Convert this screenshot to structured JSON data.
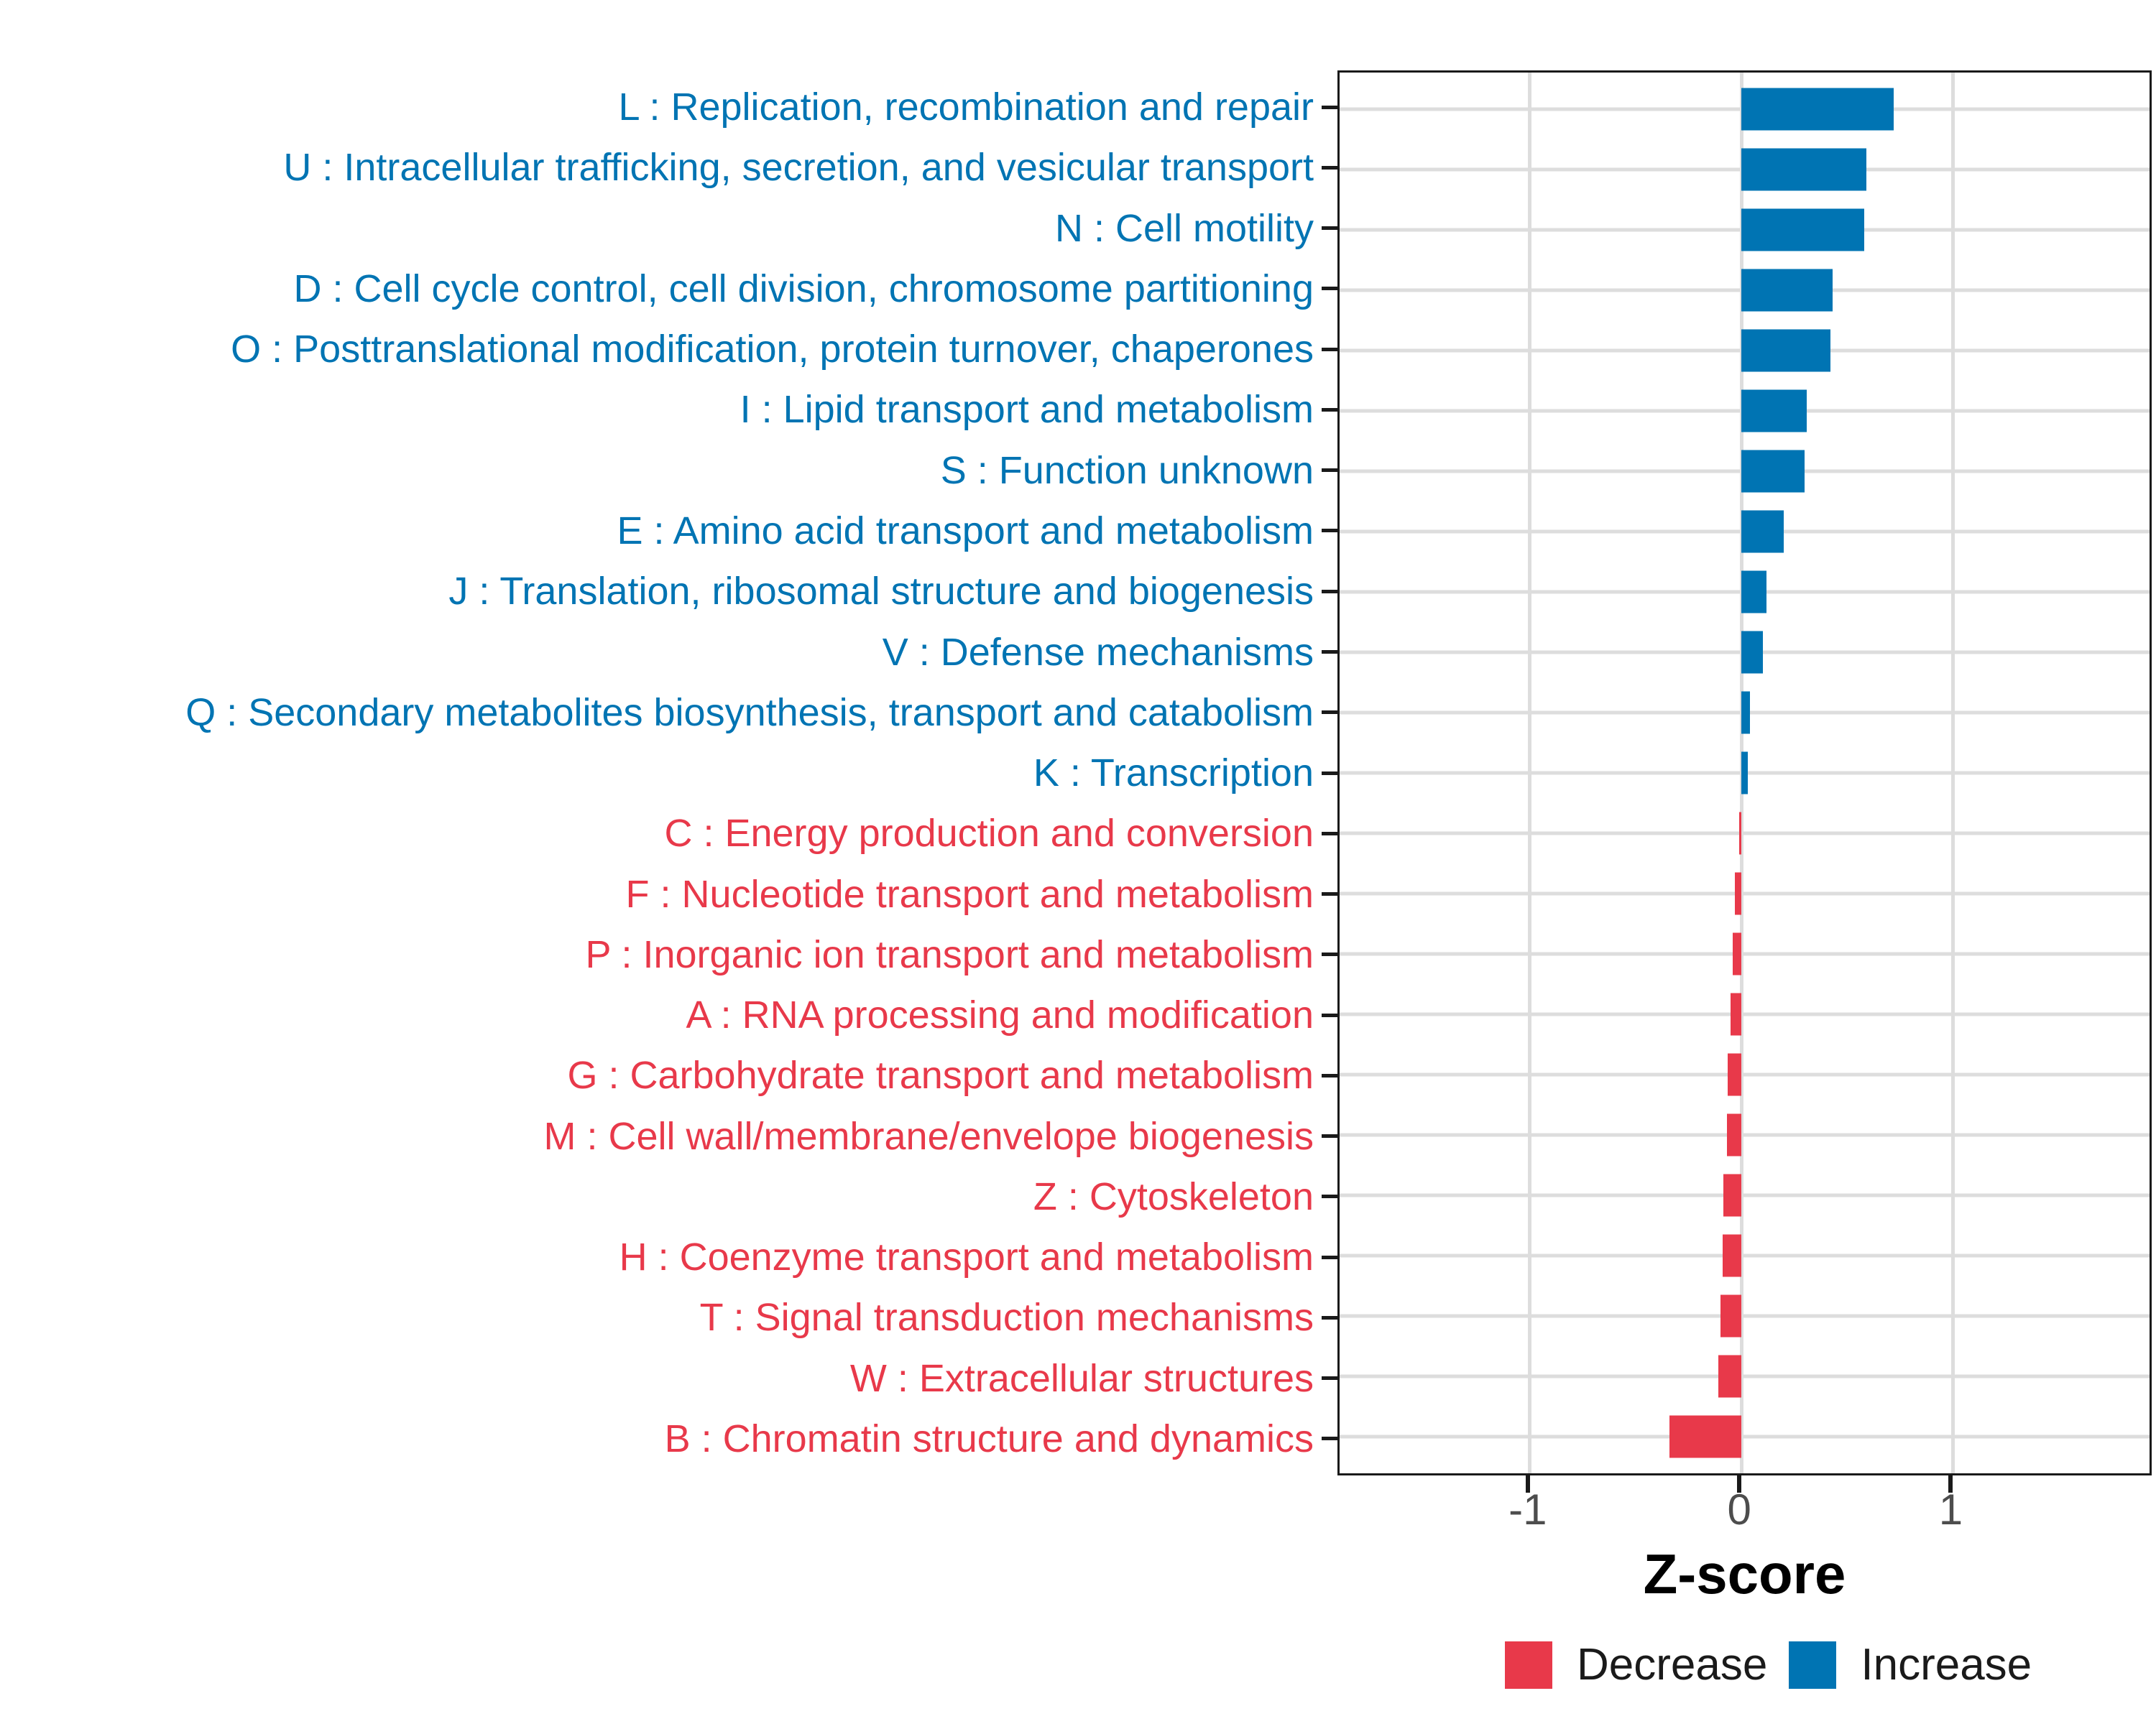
{
  "chart_data": {
    "type": "bar",
    "orientation": "horizontal",
    "title": "",
    "xlabel": "Z-score",
    "ylabel": "",
    "xlim": [
      -1.9,
      1.95
    ],
    "x_ticks": [
      {
        "value": -1,
        "label": "-1"
      },
      {
        "value": 0,
        "label": "0"
      },
      {
        "value": 1,
        "label": "1"
      }
    ],
    "grid": "major",
    "legend_position": "bottom-right",
    "legend": [
      {
        "label": "Decrease",
        "direction": "decrease",
        "color": "#e8394a"
      },
      {
        "label": "Increase",
        "direction": "increase",
        "color": "#0074b3"
      }
    ],
    "categories": [
      {
        "code": "L",
        "label": "L : Replication, recombination and repair",
        "value": 0.72,
        "direction": "increase"
      },
      {
        "code": "U",
        "label": "U : Intracellular trafficking, secretion, and vesicular transport",
        "value": 0.59,
        "direction": "increase"
      },
      {
        "code": "N",
        "label": "N : Cell motility",
        "value": 0.58,
        "direction": "increase"
      },
      {
        "code": "D",
        "label": "D : Cell cycle control, cell division, chromosome partitioning",
        "value": 0.43,
        "direction": "increase"
      },
      {
        "code": "O",
        "label": "O : Posttranslational modification, protein turnover, chaperones",
        "value": 0.42,
        "direction": "increase"
      },
      {
        "code": "I",
        "label": "I : Lipid transport and metabolism",
        "value": 0.31,
        "direction": "increase"
      },
      {
        "code": "S",
        "label": "S : Function unknown",
        "value": 0.3,
        "direction": "increase"
      },
      {
        "code": "E",
        "label": "E : Amino acid transport and metabolism",
        "value": 0.2,
        "direction": "increase"
      },
      {
        "code": "J",
        "label": "J : Translation, ribosomal structure and biogenesis",
        "value": 0.12,
        "direction": "increase"
      },
      {
        "code": "V",
        "label": "V : Defense mechanisms",
        "value": 0.1,
        "direction": "increase"
      },
      {
        "code": "Q",
        "label": "Q : Secondary metabolites biosynthesis, transport and catabolism",
        "value": 0.04,
        "direction": "increase"
      },
      {
        "code": "K",
        "label": "K : Transcription",
        "value": 0.03,
        "direction": "increase"
      },
      {
        "code": "C",
        "label": "C : Energy production and conversion",
        "value": -0.01,
        "direction": "decrease"
      },
      {
        "code": "F",
        "label": "F : Nucleotide transport and metabolism",
        "value": -0.03,
        "direction": "decrease"
      },
      {
        "code": "P",
        "label": "P : Inorganic ion transport and metabolism",
        "value": -0.04,
        "direction": "decrease"
      },
      {
        "code": "A",
        "label": "A : RNA processing and modification",
        "value": -0.05,
        "direction": "decrease"
      },
      {
        "code": "G",
        "label": "G : Carbohydrate transport and metabolism",
        "value": -0.065,
        "direction": "decrease"
      },
      {
        "code": "M",
        "label": "M : Cell wall/membrane/envelope biogenesis",
        "value": -0.07,
        "direction": "decrease"
      },
      {
        "code": "Z",
        "label": "Z : Cytoskeleton",
        "value": -0.085,
        "direction": "decrease"
      },
      {
        "code": "H",
        "label": "H : Coenzyme transport and metabolism",
        "value": -0.09,
        "direction": "decrease"
      },
      {
        "code": "T",
        "label": "T : Signal transduction mechanisms",
        "value": -0.1,
        "direction": "decrease"
      },
      {
        "code": "W",
        "label": "W : Extracellular structures",
        "value": -0.11,
        "direction": "decrease"
      },
      {
        "code": "B",
        "label": "B : Chromatin structure and dynamics",
        "value": -0.34,
        "direction": "decrease"
      }
    ]
  },
  "colors": {
    "increase": "#0074b3",
    "decrease": "#e8394a",
    "grid": "#dddddd",
    "panel_border": "#1a1a1a",
    "tick": "#1a1a1a",
    "tick_label": "#4d4d4d",
    "axis_title": "#000000",
    "legend_text": "#1a1a1a",
    "background": "#ffffff"
  }
}
